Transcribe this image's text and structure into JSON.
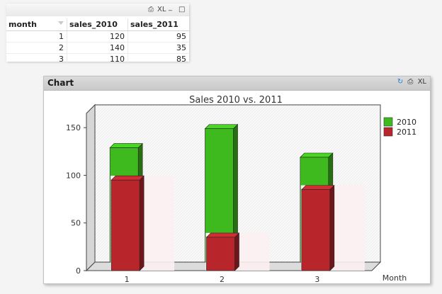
{
  "table": {
    "caption_icons": {
      "print": "⎙",
      "xl": "XL",
      "minimize": "_",
      "maximize": "□"
    },
    "headers": [
      "month",
      "sales_2010",
      "sales_2011"
    ],
    "rows": [
      [
        "1",
        "120",
        "95"
      ],
      [
        "2",
        "140",
        "35"
      ],
      [
        "3",
        "110",
        "85"
      ]
    ]
  },
  "chart_window": {
    "title": "Chart",
    "icons": {
      "refresh": "↻",
      "print": "⎙",
      "xl": "XL"
    }
  },
  "chart_data": {
    "type": "bar",
    "title": "Sales 2010 vs. 2011",
    "xlabel": "Month",
    "ylabel": "",
    "categories": [
      "1",
      "2",
      "3"
    ],
    "series": [
      {
        "name": "2010",
        "values": [
          120,
          140,
          110
        ],
        "color": "#3fba1e"
      },
      {
        "name": "2011",
        "values": [
          95,
          35,
          85
        ],
        "color": "#b8262c"
      }
    ],
    "yticks": [
      0,
      50,
      100,
      150
    ],
    "ylim": [
      0,
      165
    ],
    "grid": false,
    "legend": "right",
    "style": "3d"
  }
}
